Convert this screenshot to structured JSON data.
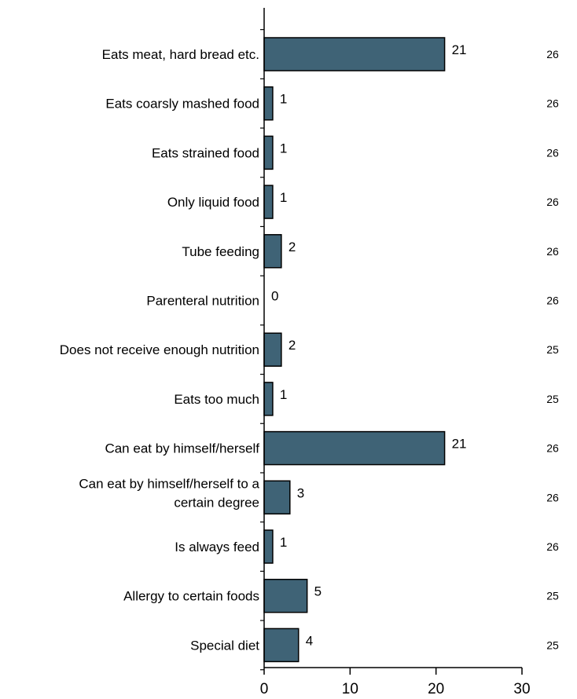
{
  "chart_data": {
    "type": "bar",
    "orientation": "horizontal",
    "categories": [
      [
        "Eats meat, hard bread etc."
      ],
      [
        "Eats coarsly mashed food"
      ],
      [
        "Eats strained food"
      ],
      [
        "Only liquid food"
      ],
      [
        "Tube feeding"
      ],
      [
        "Parenteral nutrition"
      ],
      [
        "Does not receive enough nutrition"
      ],
      [
        "Eats too much"
      ],
      [
        "Can eat by himself/herself"
      ],
      [
        "Can eat by himself/herself to a",
        "certain degree"
      ],
      [
        "Is always feed"
      ],
      [
        "Allergy to certain foods"
      ],
      [
        "Special diet"
      ]
    ],
    "values": [
      21,
      1,
      1,
      1,
      2,
      0,
      2,
      1,
      21,
      3,
      1,
      5,
      4
    ],
    "n_values": [
      26,
      26,
      26,
      26,
      26,
      26,
      25,
      25,
      26,
      26,
      26,
      25,
      25
    ],
    "xlim": [
      0,
      30
    ],
    "xticks": [
      0,
      10,
      20,
      30
    ],
    "bar_color": "#3f6376",
    "grid": false
  }
}
